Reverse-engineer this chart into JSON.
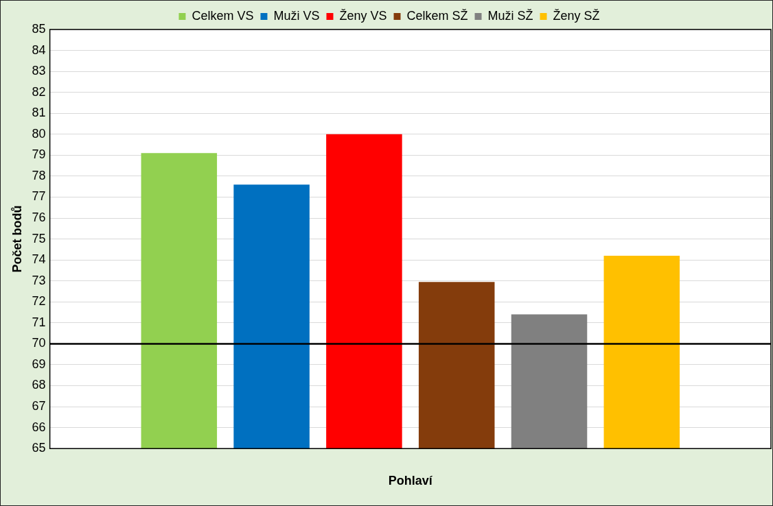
{
  "chart_data": {
    "type": "bar",
    "xlabel": "Pohlaví",
    "ylabel": "Počet bodů",
    "categories": [
      null
    ],
    "series": [
      {
        "name": "Celkem VS",
        "color": "#92d050",
        "values": [
          79.1
        ]
      },
      {
        "name": "Muži VS",
        "color": "#0070c0",
        "values": [
          77.6
        ]
      },
      {
        "name": "Ženy VS",
        "color": "#ff0000",
        "values": [
          80.0
        ]
      },
      {
        "name": "Celkem SŽ",
        "color": "#843c0c",
        "values": [
          72.95
        ]
      },
      {
        "name": "Muži SŽ",
        "color": "#808080",
        "values": [
          71.4
        ]
      },
      {
        "name": "Ženy SŽ",
        "color": "#ffc000",
        "values": [
          74.2
        ]
      }
    ],
    "ylim": [
      65,
      85
    ],
    "yticks": [
      65,
      66,
      67,
      68,
      69,
      70,
      71,
      72,
      73,
      74,
      75,
      76,
      77,
      78,
      79,
      80,
      81,
      82,
      83,
      84,
      85
    ],
    "grid": "y",
    "legend": "top",
    "ref_lines": [
      {
        "axis": "y",
        "value": 70,
        "color": "#000000"
      }
    ]
  }
}
